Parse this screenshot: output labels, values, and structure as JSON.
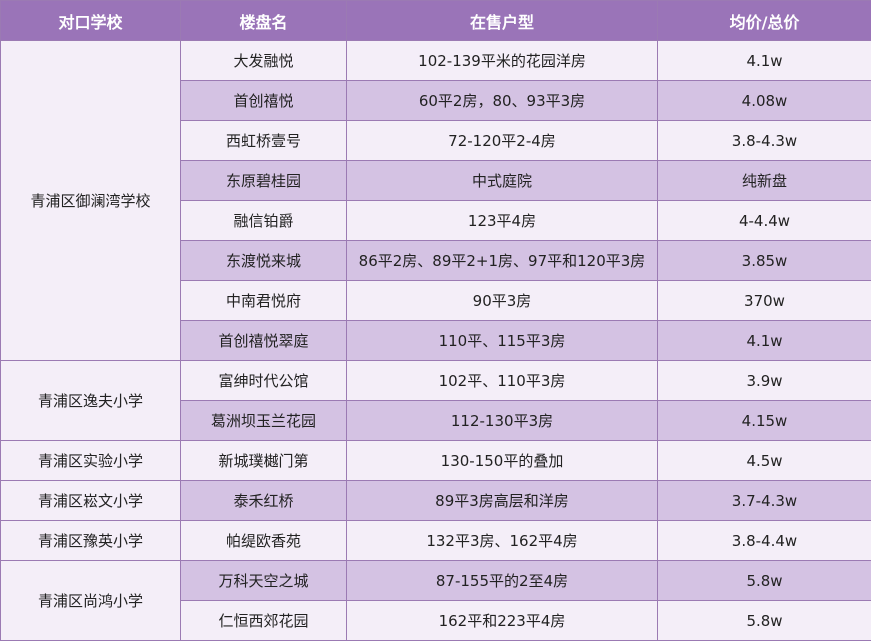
{
  "table": {
    "headers": [
      "对口学校",
      "楼盘名",
      "在售户型",
      "均价/总价"
    ],
    "groups": [
      {
        "school": "青浦区御澜湾学校",
        "rows": [
          {
            "name": "大发融悦",
            "type": "102-139平米的花园洋房",
            "price": "4.1w"
          },
          {
            "name": "首创禧悦",
            "type": "60平2房，80、93平3房",
            "price": "4.08w"
          },
          {
            "name": "西虹桥壹号",
            "type": "72-120平2-4房",
            "price": "3.8-4.3w"
          },
          {
            "name": "东原碧桂园",
            "type": "中式庭院",
            "price": "纯新盘"
          },
          {
            "name": "融信铂爵",
            "type": "123平4房",
            "price": "4-4.4w"
          },
          {
            "name": "东渡悦来城",
            "type": "86平2房、89平2+1房、97平和120平3房",
            "price": "3.85w"
          },
          {
            "name": "中南君悦府",
            "type": "90平3房",
            "price": "370w"
          },
          {
            "name": "首创禧悦翠庭",
            "type": "110平、115平3房",
            "price": "4.1w"
          }
        ]
      },
      {
        "school": "青浦区逸夫小学",
        "rows": [
          {
            "name": "富绅时代公馆",
            "type": "102平、110平3房",
            "price": "3.9w"
          },
          {
            "name": "葛洲坝玉兰花园",
            "type": "112-130平3房",
            "price": "4.15w"
          }
        ]
      },
      {
        "school": "青浦区实验小学",
        "rows": [
          {
            "name": "新城璞樾门第",
            "type": "130-150平的叠加",
            "price": "4.5w"
          }
        ]
      },
      {
        "school": "青浦区崧文小学",
        "rows": [
          {
            "name": "泰禾红桥",
            "type": "89平3房高层和洋房",
            "price": "3.7-4.3w"
          }
        ]
      },
      {
        "school": "青浦区豫英小学",
        "rows": [
          {
            "name": "帕缇欧香苑",
            "type": "132平3房、162平4房",
            "price": "3.8-4.4w"
          }
        ]
      },
      {
        "school": "青浦区尚鸿小学",
        "rows": [
          {
            "name": "万科天空之城",
            "type": "87-155平的2至4房",
            "price": "5.8w"
          },
          {
            "name": "仁恒西郊花园",
            "type": "162平和223平4房",
            "price": "5.8w"
          }
        ]
      }
    ]
  }
}
